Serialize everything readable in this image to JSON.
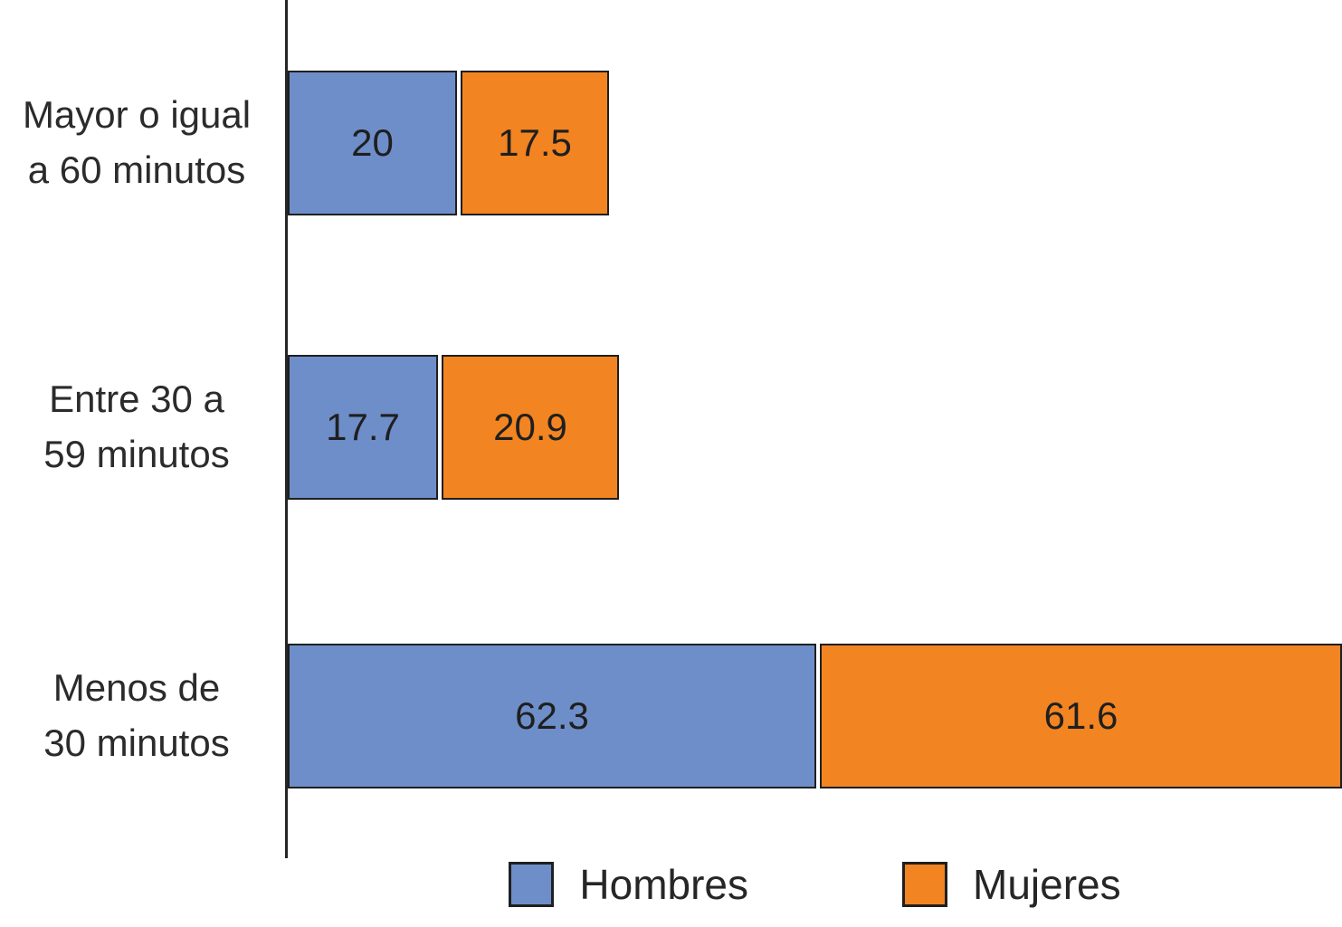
{
  "chart_data": {
    "type": "bar",
    "orientation": "horizontal",
    "stacked": true,
    "title": "",
    "xlabel": "",
    "ylabel": "",
    "grid": false,
    "legend_position": "bottom",
    "xlim": [
      0,
      124.5
    ],
    "categories": [
      "Mayor o igual\na 60 minutos",
      "Entre 30 a\n59 minutos",
      "Menos de\n30 minutos"
    ],
    "series": [
      {
        "name": "Hombres",
        "color": "#6E8EC9",
        "values": [
          20,
          17.7,
          62.3
        ],
        "labels": [
          "20",
          "17.7",
          "62.3"
        ]
      },
      {
        "name": "Mujeres",
        "color": "#F28422",
        "values": [
          17.5,
          20.9,
          61.6
        ],
        "labels": [
          "17.5",
          "20.9",
          "61.6"
        ]
      }
    ],
    "axis_color": "#262626",
    "bar_border_color": "#1f1f1f",
    "text_color": "#262626"
  }
}
